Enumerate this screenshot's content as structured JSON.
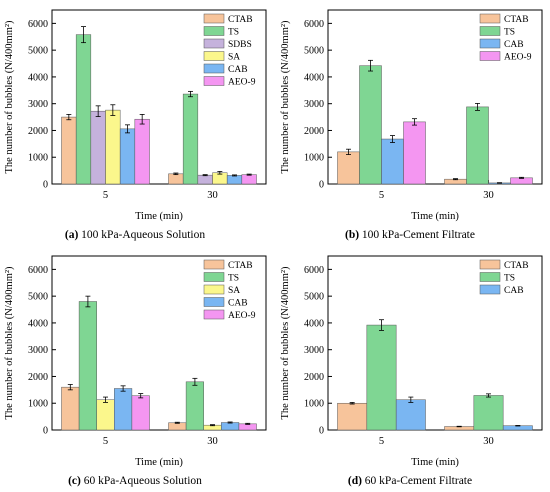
{
  "colors": {
    "CTAB": "#f7c49b",
    "TS": "#7fd693",
    "SDBS": "#c5b2dc",
    "SA": "#fbf78c",
    "CAB": "#7ab6f2",
    "AEO-9": "#f496f1"
  },
  "chart_data": [
    {
      "id": "a",
      "type": "bar",
      "categories": [
        "5",
        "30"
      ],
      "xlabel": "Time (min)",
      "ylabel": "The number of bubbles (N/400mm²)",
      "ylim": [
        0,
        6500
      ],
      "yticks": [
        0,
        1000,
        2000,
        3000,
        4000,
        5000,
        6000
      ],
      "legend_position": "top-right",
      "caption_label": "(a)",
      "caption_text": " 100 kPa-Aqueous Solution",
      "series": [
        {
          "name": "CTAB",
          "values": [
            2500,
            380
          ],
          "errors": [
            100,
            30
          ]
        },
        {
          "name": "TS",
          "values": [
            5580,
            3360
          ],
          "errors": [
            300,
            100
          ]
        },
        {
          "name": "SDBS",
          "values": [
            2720,
            330
          ],
          "errors": [
            200,
            20
          ]
        },
        {
          "name": "SA",
          "values": [
            2760,
            420
          ],
          "errors": [
            200,
            50
          ]
        },
        {
          "name": "CAB",
          "values": [
            2060,
            320
          ],
          "errors": [
            150,
            20
          ]
        },
        {
          "name": "AEO-9",
          "values": [
            2420,
            350
          ],
          "errors": [
            180,
            20
          ]
        }
      ]
    },
    {
      "id": "b",
      "type": "bar",
      "categories": [
        "5",
        "30"
      ],
      "xlabel": "Time (min)",
      "ylabel": "The number of bubbles (N/400mm²)",
      "ylim": [
        0,
        6500
      ],
      "yticks": [
        0,
        1000,
        2000,
        3000,
        4000,
        5000,
        6000
      ],
      "legend_position": "top-right",
      "caption_label": "(b)",
      "caption_text": " 100 kPa-Cement Filtrate",
      "series": [
        {
          "name": "CTAB",
          "values": [
            1200,
            180
          ],
          "errors": [
            100,
            20
          ]
        },
        {
          "name": "TS",
          "values": [
            4420,
            2880
          ],
          "errors": [
            200,
            130
          ]
        },
        {
          "name": "CAB",
          "values": [
            1680,
            40
          ],
          "errors": [
            130,
            10
          ]
        },
        {
          "name": "AEO-9",
          "values": [
            2320,
            230
          ],
          "errors": [
            120,
            20
          ]
        }
      ]
    },
    {
      "id": "c",
      "type": "bar",
      "categories": [
        "5",
        "30"
      ],
      "xlabel": "Time (min)",
      "ylabel": "The number of bubbles (N/400mm²)",
      "ylim": [
        0,
        6500
      ],
      "yticks": [
        0,
        1000,
        2000,
        3000,
        4000,
        5000,
        6000
      ],
      "legend_position": "top-right",
      "caption_label": "(c)",
      "caption_text": " 60 kPa-Aqueous Solution",
      "series": [
        {
          "name": "CTAB",
          "values": [
            1600,
            270
          ],
          "errors": [
            100,
            20
          ]
        },
        {
          "name": "TS",
          "values": [
            4800,
            1800
          ],
          "errors": [
            200,
            130
          ]
        },
        {
          "name": "SA",
          "values": [
            1130,
            180
          ],
          "errors": [
            100,
            20
          ]
        },
        {
          "name": "CAB",
          "values": [
            1550,
            280
          ],
          "errors": [
            100,
            20
          ]
        },
        {
          "name": "AEO-9",
          "values": [
            1280,
            230
          ],
          "errors": [
            80,
            20
          ]
        }
      ]
    },
    {
      "id": "d",
      "type": "bar",
      "categories": [
        "5",
        "30"
      ],
      "xlabel": "Time (min)",
      "ylabel": "The number of bubbles (N/400mm²)",
      "ylim": [
        0,
        6500
      ],
      "yticks": [
        0,
        1000,
        2000,
        3000,
        4000,
        5000,
        6000
      ],
      "legend_position": "top-right",
      "caption_label": "(d)",
      "caption_text": " 60 kPa-Cement Filtrate",
      "series": [
        {
          "name": "CTAB",
          "values": [
            1000,
            130
          ],
          "errors": [
            30,
            10
          ]
        },
        {
          "name": "TS",
          "values": [
            3920,
            1290
          ],
          "errors": [
            200,
            60
          ]
        },
        {
          "name": "CAB",
          "values": [
            1130,
            160
          ],
          "errors": [
            100,
            10
          ]
        }
      ]
    }
  ]
}
